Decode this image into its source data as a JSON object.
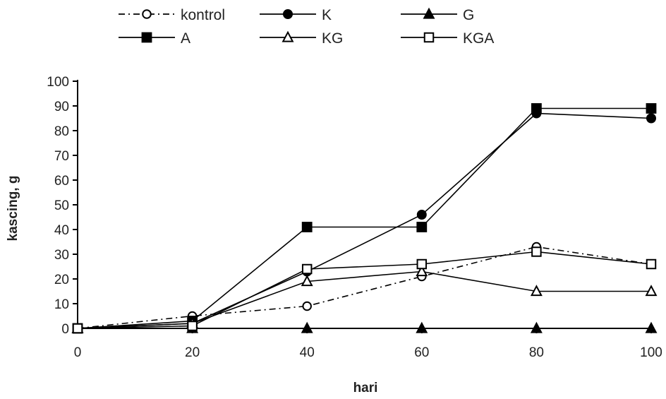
{
  "chart_data": {
    "type": "line",
    "title": "",
    "xlabel": "hari",
    "ylabel": "kascing, g",
    "xlim": [
      0,
      100
    ],
    "ylim": [
      0,
      100
    ],
    "xticks": [
      0,
      20,
      40,
      60,
      80,
      100
    ],
    "yticks": [
      0,
      10,
      20,
      30,
      40,
      50,
      60,
      70,
      80,
      90,
      100
    ],
    "grid": false,
    "legend_position": "top",
    "series": [
      {
        "name": "kontrol",
        "marker": "open-circle",
        "line": "dashdot",
        "x": [
          0,
          20,
          40,
          60,
          80,
          100
        ],
        "y": [
          0,
          5,
          9,
          21,
          33,
          26
        ]
      },
      {
        "name": "K",
        "marker": "filled-circle",
        "line": "solid",
        "x": [
          0,
          20,
          40,
          60,
          80,
          100
        ],
        "y": [
          0,
          2,
          23,
          46,
          87,
          85
        ]
      },
      {
        "name": "G",
        "marker": "filled-triangle",
        "line": "solid",
        "x": [
          0,
          20,
          40,
          60,
          80,
          100
        ],
        "y": [
          0,
          0,
          0,
          0,
          0,
          0
        ]
      },
      {
        "name": "A",
        "marker": "filled-square",
        "line": "solid",
        "x": [
          0,
          20,
          40,
          60,
          80,
          100
        ],
        "y": [
          0,
          3,
          41,
          41,
          89,
          89
        ]
      },
      {
        "name": "KG",
        "marker": "open-triangle",
        "line": "solid",
        "x": [
          0,
          20,
          40,
          60,
          80,
          100
        ],
        "y": [
          0,
          2,
          19,
          23,
          15,
          15
        ]
      },
      {
        "name": "KGA",
        "marker": "open-square",
        "line": "solid",
        "x": [
          0,
          20,
          40,
          60,
          80,
          100
        ],
        "y": [
          0,
          1,
          24,
          26,
          31,
          26
        ]
      }
    ]
  }
}
